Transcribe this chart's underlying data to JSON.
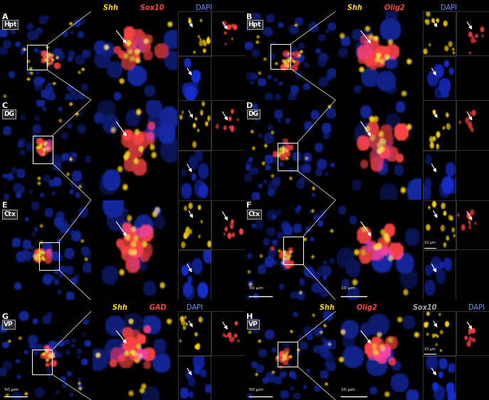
{
  "fig_width": 6.87,
  "fig_height": 5.63,
  "dpi": 100,
  "panels": [
    {
      "id": "A",
      "label": "A",
      "title_parts": [
        {
          "text": "Shh ",
          "color": "#FFD700",
          "style": "italic"
        },
        {
          "text": "Sox10 ",
          "color": "#FF4444",
          "style": "italic"
        },
        {
          "text": "DAPI",
          "color": "#6699FF",
          "style": "normal"
        }
      ],
      "region_label": "Hpt",
      "row": 0,
      "col": 0,
      "has_title": true,
      "scalebars": [],
      "inset_colors": [
        "#FFD700",
        "#FF4444",
        "#4466CC"
      ],
      "seed": 42
    },
    {
      "id": "B",
      "label": "B",
      "title_parts": [
        {
          "text": "Shh ",
          "color": "#FFD700",
          "style": "italic"
        },
        {
          "text": "Olig2 ",
          "color": "#FF4444",
          "style": "italic"
        },
        {
          "text": "DAPI",
          "color": "#6699FF",
          "style": "normal"
        }
      ],
      "region_label": "Hpt",
      "row": 0,
      "col": 1,
      "has_title": true,
      "scalebars": [],
      "inset_colors": [
        "#FFD700",
        "#FF4444",
        "#4466CC"
      ],
      "seed": 77
    },
    {
      "id": "C",
      "label": "C",
      "title_parts": [],
      "region_label": "DG",
      "row": 1,
      "col": 0,
      "has_title": false,
      "scalebars": [],
      "inset_colors": [
        "#FFD700",
        "#FF4444",
        "#4466CC"
      ],
      "seed": 13
    },
    {
      "id": "D",
      "label": "D",
      "title_parts": [],
      "region_label": "DG",
      "row": 1,
      "col": 1,
      "has_title": false,
      "scalebars": [],
      "inset_colors": [
        "#FFD700",
        "#FF4444",
        "#4466CC"
      ],
      "seed": 99
    },
    {
      "id": "E",
      "label": "E",
      "title_parts": [],
      "region_label": "Ctx",
      "row": 2,
      "col": 0,
      "has_title": false,
      "scalebars": [],
      "inset_colors": [
        "#FFD700",
        "#FF4444",
        "#4466CC"
      ],
      "seed": 55
    },
    {
      "id": "F",
      "label": "F",
      "title_parts": [],
      "region_label": "Ctx",
      "row": 2,
      "col": 1,
      "has_title": false,
      "scalebars": [
        "50 μm",
        "10 μm",
        "10 μm"
      ],
      "inset_colors": [
        "#FFD700",
        "#FF4444",
        "#4466CC"
      ],
      "seed": 23
    },
    {
      "id": "G",
      "label": "G",
      "title_parts": [
        {
          "text": "Shh ",
          "color": "#FFD700",
          "style": "italic"
        },
        {
          "text": "GAD ",
          "color": "#FF4444",
          "style": "italic"
        },
        {
          "text": "DAPI",
          "color": "#6699FF",
          "style": "normal"
        }
      ],
      "region_label": "VP",
      "row": 3,
      "col": 0,
      "has_title": true,
      "scalebars": [
        "50 μm"
      ],
      "inset_colors": [
        "#FFD700",
        "#FF4444",
        "#4466CC"
      ],
      "seed": 88
    },
    {
      "id": "H",
      "label": "H",
      "title_parts": [
        {
          "text": "Shh ",
          "color": "#FFD700",
          "style": "italic"
        },
        {
          "text": "Olig2 ",
          "color": "#FF4444",
          "style": "italic"
        },
        {
          "text": "Sox10 ",
          "color": "#AAAAAA",
          "style": "italic"
        },
        {
          "text": "DAPI",
          "color": "#6699FF",
          "style": "normal"
        }
      ],
      "region_label": "VP",
      "row": 3,
      "col": 1,
      "has_title": true,
      "scalebars": [
        "50 μm",
        "10 μm",
        "10 μm"
      ],
      "inset_colors": [
        "#FFD700",
        "#FF4444",
        "#AAAAAA"
      ],
      "seed": 66
    }
  ],
  "bg": "#000000",
  "title_fs": 7.0,
  "label_fs": 8.0,
  "region_fs": 6.5,
  "sb_fs": 4.5
}
